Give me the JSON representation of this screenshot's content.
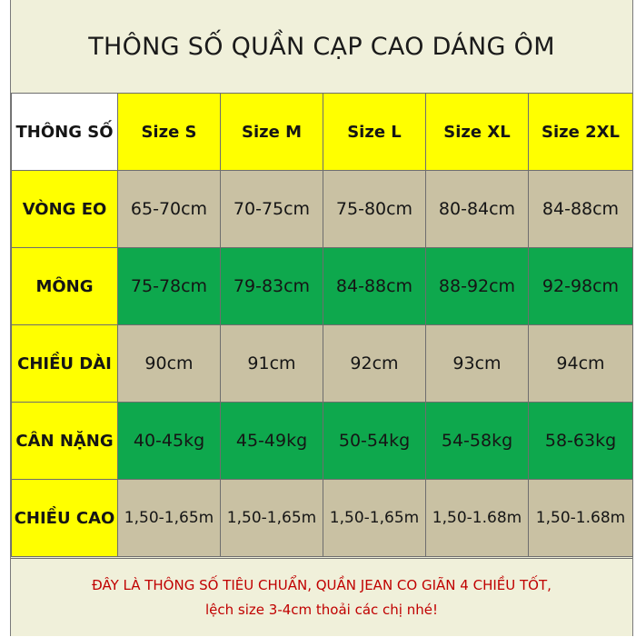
{
  "title": "THÔNG SỐ QUẦN CẠP CAO DÁNG ÔM",
  "table": {
    "corner": "THÔNG SỐ",
    "sizes": [
      "Size S",
      "Size M",
      "Size L",
      "Size XL",
      "Size 2XL"
    ],
    "rows": [
      {
        "label": "VÒNG EO",
        "values": [
          "65-70cm",
          "70-75cm",
          "75-80cm",
          "80-84cm",
          "84-88cm"
        ]
      },
      {
        "label": "MÔNG",
        "values": [
          "75-78cm",
          "79-83cm",
          "84-88cm",
          "88-92cm",
          "92-98cm"
        ]
      },
      {
        "label": "CHIỀU DÀI",
        "values": [
          "90cm",
          "91cm",
          "92cm",
          "93cm",
          "94cm"
        ]
      },
      {
        "label": "CÂN NẶNG",
        "values": [
          "40-45kg",
          "45-49kg",
          "50-54kg",
          "54-58kg",
          "58-63kg"
        ]
      },
      {
        "label": "CHIỀU CAO",
        "values": [
          "1,50-1,65m",
          "1,50-1,65m",
          "1,50-1,65m",
          "1,50-1.68m",
          "1,50-1.68m"
        ]
      }
    ]
  },
  "note": {
    "line1": "ĐÂY LÀ THÔNG SỐ TIÊU CHUẨN, QUẦN JEAN CO GIÃN 4 CHIỀU TỐT,",
    "line2": "lệch size 3-4cm thoải các chị nhé!"
  },
  "colors": {
    "yellow": "#ffff00",
    "tan": "#c9c1a3",
    "green": "#0ea84d",
    "note_red": "#c00000"
  }
}
